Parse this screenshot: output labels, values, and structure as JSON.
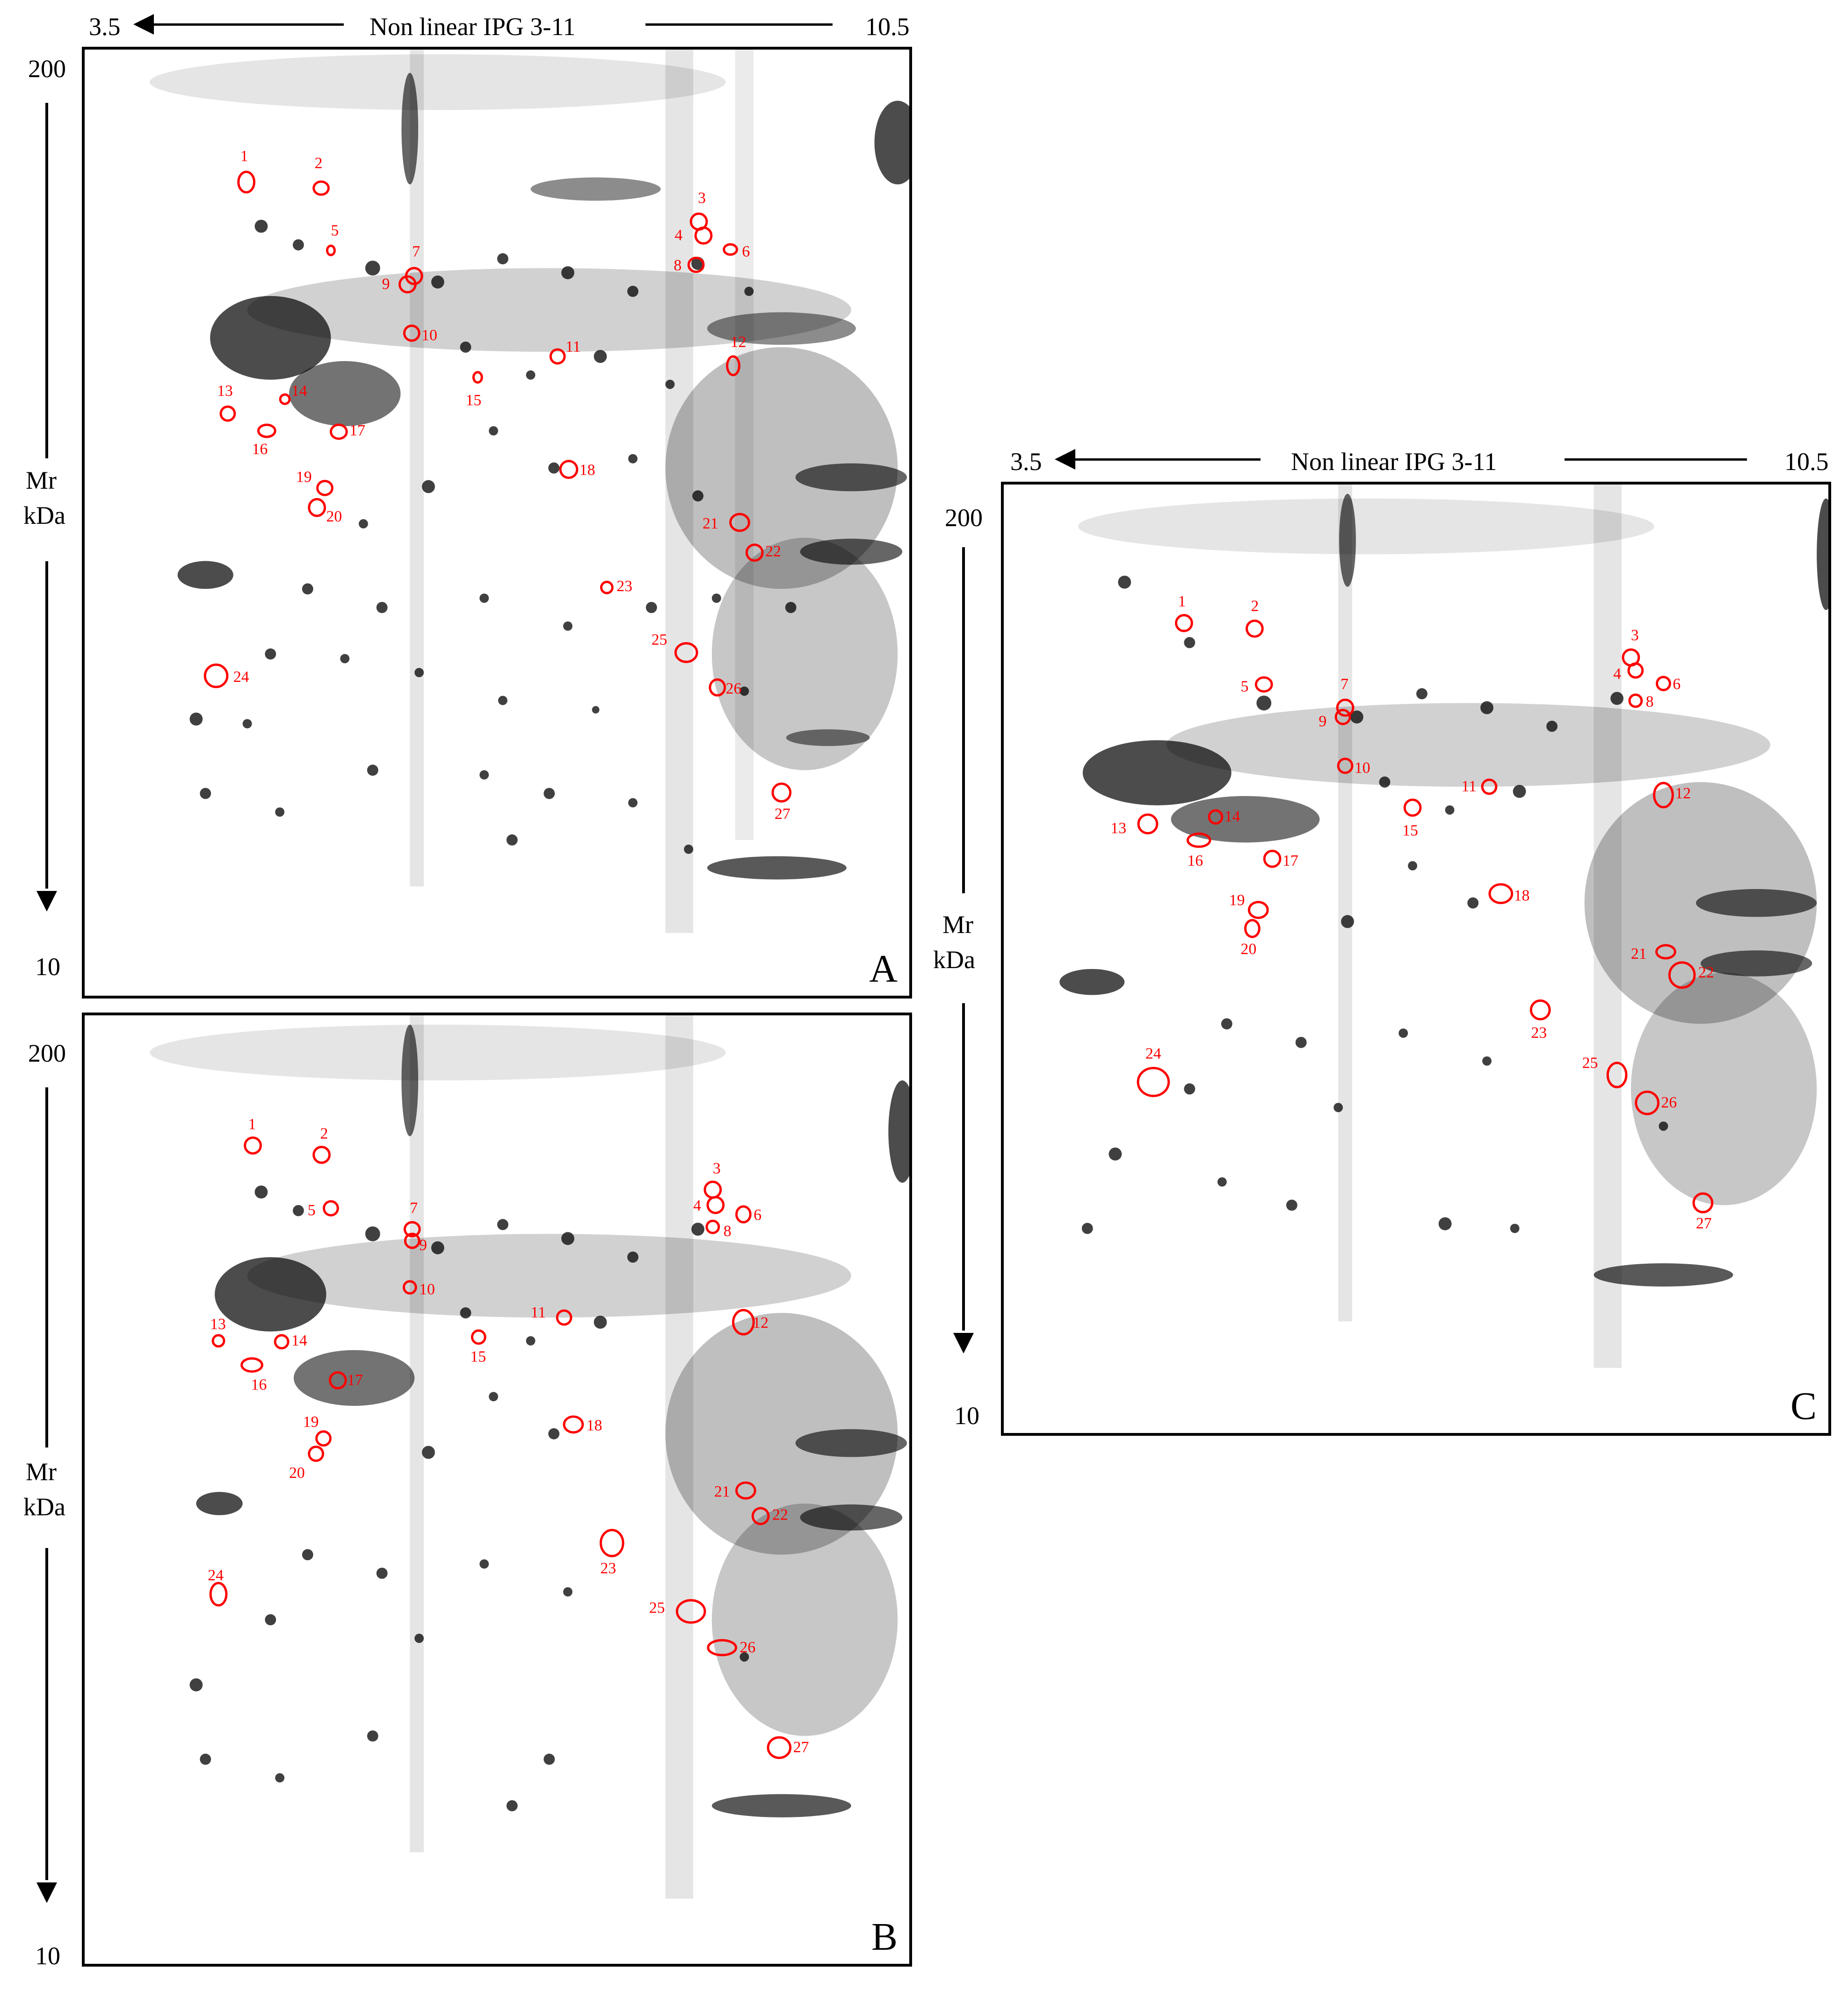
{
  "axis": {
    "ph_left": "3.5",
    "ph_right": "10.5",
    "strip": "Non linear IPG 3-11",
    "mr_top": "200",
    "mr_bottom": "10",
    "mr_label_1": "Mr",
    "mr_label_2": "kDa"
  },
  "panels": [
    {
      "id": "A",
      "letter": "A"
    },
    {
      "id": "B",
      "letter": "B"
    },
    {
      "id": "C",
      "letter": "C"
    }
  ],
  "spots": [
    "1",
    "2",
    "3",
    "4",
    "5",
    "6",
    "7",
    "8",
    "9",
    "10",
    "11",
    "12",
    "13",
    "14",
    "15",
    "16",
    "17",
    "18",
    "19",
    "20",
    "21",
    "22",
    "23",
    "24",
    "25",
    "26",
    "27"
  ],
  "colors": {
    "marker": "#ff0000",
    "ink": "#000000"
  }
}
